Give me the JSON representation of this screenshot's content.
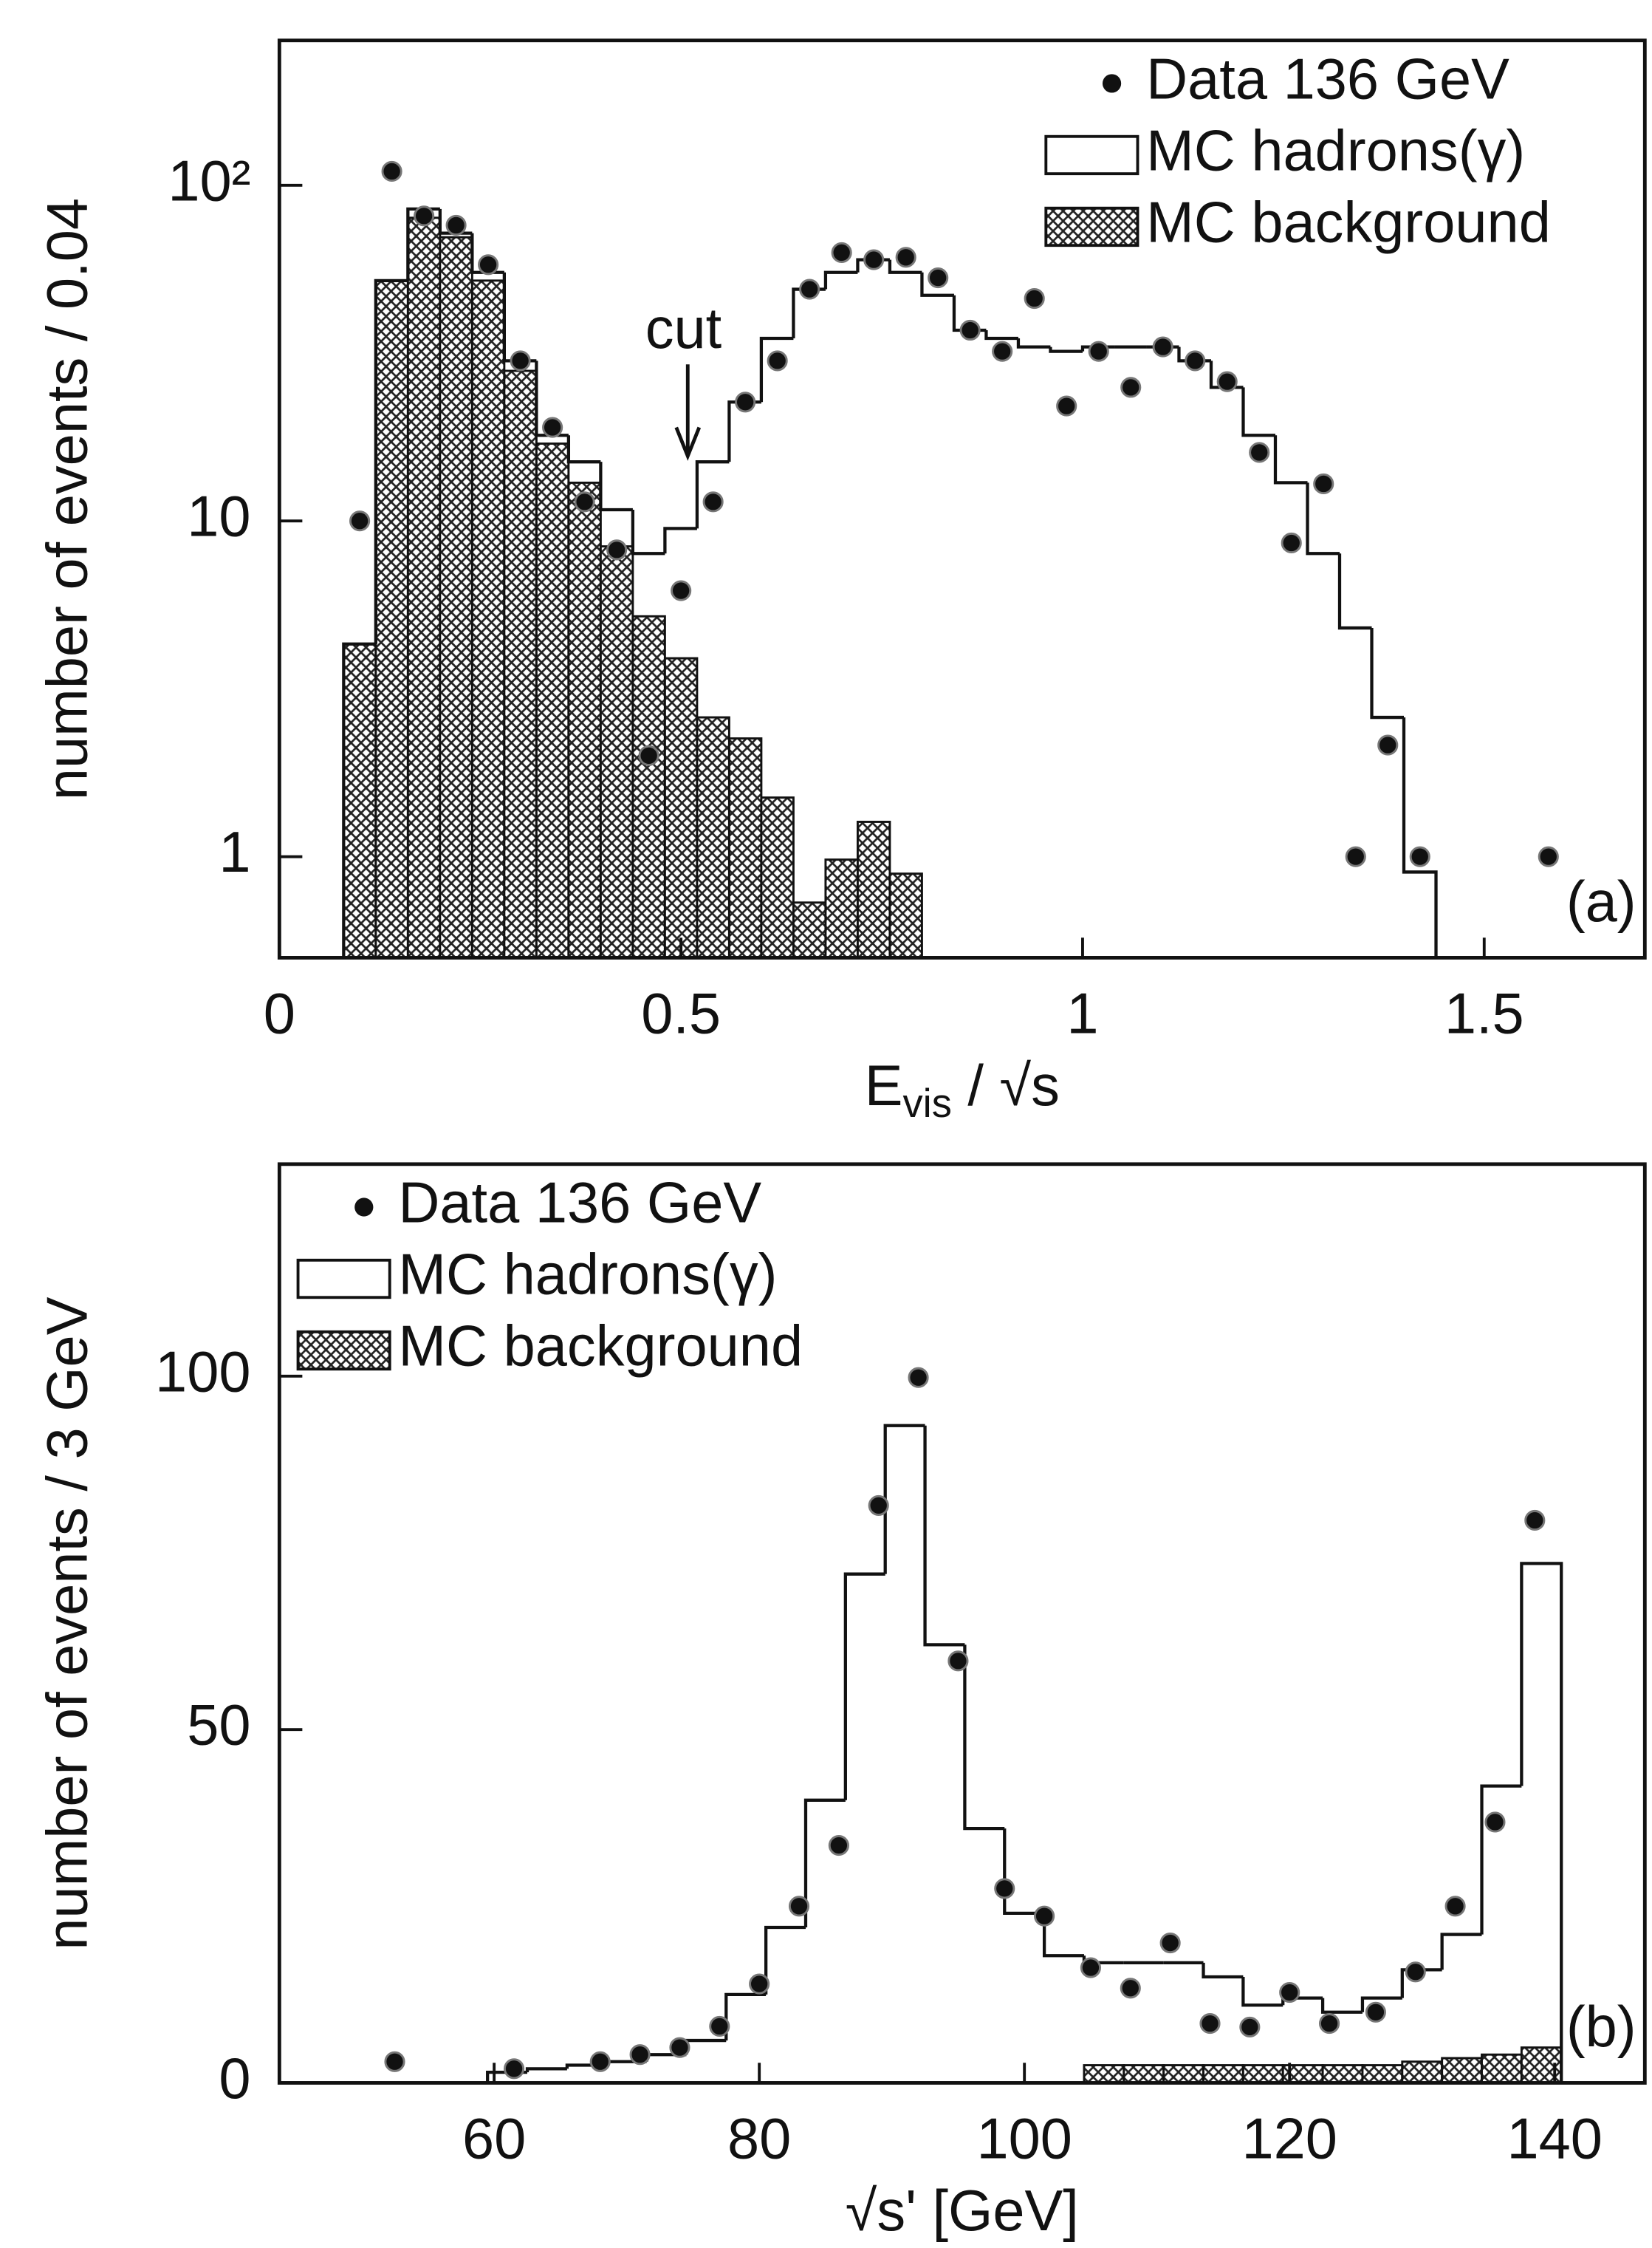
{
  "chart_data": [
    {
      "type": "histogram",
      "panel_label": "(a)",
      "annotation": "cut",
      "xlabel": [
        "E",
        "vis",
        " / √s"
      ],
      "ylabel": "number of events / 0.04",
      "xlim": [
        0,
        1.7
      ],
      "ylim": [
        0.5,
        270
      ],
      "log_y": true,
      "legend": "upper right",
      "xticks": [
        0,
        0.5,
        1,
        1.5
      ],
      "yticks": [
        1,
        10,
        {
          "value": 100,
          "label": "10²"
        }
      ],
      "series": [
        {
          "name": "Data 136 GeV",
          "type": "points",
          "color": "#111111",
          "x": [
            0.1,
            0.14,
            0.18,
            0.22,
            0.26,
            0.3,
            0.34,
            0.38,
            0.42,
            0.46,
            0.5,
            0.54,
            0.58,
            0.62,
            0.66,
            0.7,
            0.74,
            0.78,
            0.82,
            0.86,
            0.9,
            0.94,
            0.98,
            1.02,
            1.06,
            1.1,
            1.14,
            1.18,
            1.22,
            1.26,
            1.3,
            1.34,
            1.38,
            1.42,
            1.58
          ],
          "values": [
            10,
            110,
            81,
            76,
            58,
            30,
            19,
            11.4,
            8.2,
            2,
            6.2,
            11.4,
            22.6,
            30,
            49,
            63,
            60,
            61,
            53,
            37,
            32,
            46,
            22,
            32,
            25,
            33,
            30,
            26,
            16,
            8.6,
            12.9,
            1,
            2.15,
            1,
            1
          ]
        },
        {
          "name": "MC hadrons(γ)",
          "type": "step",
          "color": "#111111",
          "bins": [
            0.08,
            0.12,
            0.16,
            0.2,
            0.24,
            0.28,
            0.32,
            0.36,
            0.4,
            0.44,
            0.48,
            0.52,
            0.56,
            0.6,
            0.64,
            0.68,
            0.72,
            0.76,
            0.8,
            0.84,
            0.88,
            0.92,
            0.96,
            1,
            1.04,
            1.08,
            1.12,
            1.16,
            1.2,
            1.24,
            1.28,
            1.32,
            1.36,
            1.4,
            1.44
          ],
          "values": [
            4.3,
            52,
            85,
            72,
            55,
            30,
            18,
            15,
            10.8,
            8,
            9.5,
            15,
            22.6,
            35,
            49,
            55,
            60,
            55,
            47,
            37,
            35,
            33,
            32,
            33,
            33,
            33,
            30,
            25,
            18,
            13,
            8,
            4.8,
            2.6,
            0.9
          ]
        },
        {
          "name": "MC background",
          "type": "hatched",
          "color": "#111111",
          "bins": [
            0.08,
            0.12,
            0.16,
            0.2,
            0.24,
            0.28,
            0.32,
            0.36,
            0.4,
            0.44,
            0.48,
            0.52,
            0.56,
            0.6,
            0.64,
            0.68,
            0.72,
            0.76,
            0.8
          ],
          "values": [
            4.3,
            52,
            80,
            70,
            52,
            28,
            17,
            13,
            8.4,
            5.2,
            3.9,
            2.6,
            2.25,
            1.5,
            0.73,
            0.98,
            1.27,
            0.89
          ]
        }
      ]
    },
    {
      "type": "histogram",
      "panel_label": "(b)",
      "xlabel": [
        "√s' [GeV]"
      ],
      "ylabel": "number of events / 3 GeV",
      "xlim": [
        43.8,
        146.8
      ],
      "ylim": [
        0,
        130
      ],
      "log_y": false,
      "legend": "upper left",
      "xticks": [
        60,
        80,
        100,
        120,
        140
      ],
      "yticks": [
        0,
        50,
        100
      ],
      "series": [
        {
          "name": "Data 136 GeV",
          "type": "points",
          "color": "#111111",
          "x": [
            52.5,
            61.5,
            68,
            71,
            74,
            77,
            80,
            83,
            86,
            89,
            92,
            95,
            98.5,
            101.5,
            105,
            108,
            111,
            114,
            117,
            120,
            123,
            126.5,
            129.5,
            132.5,
            135.5,
            138.5
          ],
          "values": [
            3,
            2,
            3,
            4,
            5,
            8,
            14,
            25,
            33.6,
            81.7,
            99.8,
            59.7,
            27.5,
            23.6,
            16.3,
            13.4,
            19.8,
            8.4,
            7.9,
            12.8,
            8.4,
            10,
            15.7,
            25,
            36.9,
            79.6
          ]
        },
        {
          "name": "MC hadrons(γ)",
          "type": "step",
          "color": "#111111",
          "bins": [
            56.5,
            59.5,
            62.5,
            65.5,
            68.5,
            71.5,
            74.5,
            77.5,
            80.5,
            83.5,
            86.5,
            89.5,
            92.5,
            95.5,
            98.5,
            101.5,
            104.5,
            107.5,
            110.5,
            113.5,
            116.5,
            119.5,
            122.5,
            125.5,
            128.5,
            131.5,
            134.5,
            137.5,
            140.5
          ],
          "values": [
            0,
            1.5,
            2,
            2.5,
            3,
            4,
            6,
            12.5,
            22,
            40,
            72,
            93,
            62,
            36,
            24,
            18,
            17,
            17,
            17,
            15,
            11,
            12,
            10,
            12,
            16,
            21,
            42,
            73.5
          ]
        },
        {
          "name": "MC background",
          "type": "hatched",
          "color": "#111111",
          "bins": [
            56.5,
            59.5,
            62.5,
            65.5,
            68.5,
            71.5,
            74.5,
            77.5,
            80.5,
            83.5,
            86.5,
            89.5,
            92.5,
            95.5,
            98.5,
            101.5,
            104.5,
            107.5,
            110.5,
            113.5,
            116.5,
            119.5,
            122.5,
            125.5,
            128.5,
            131.5,
            134.5,
            137.5,
            140.5
          ],
          "values": [
            0,
            0,
            0,
            0,
            0,
            0,
            0,
            0,
            0,
            0,
            0,
            0,
            0,
            0,
            0,
            0,
            2.5,
            2.5,
            2.5,
            2.5,
            2.5,
            2.5,
            2.5,
            2.5,
            3,
            3.5,
            4,
            5
          ]
        }
      ]
    }
  ]
}
